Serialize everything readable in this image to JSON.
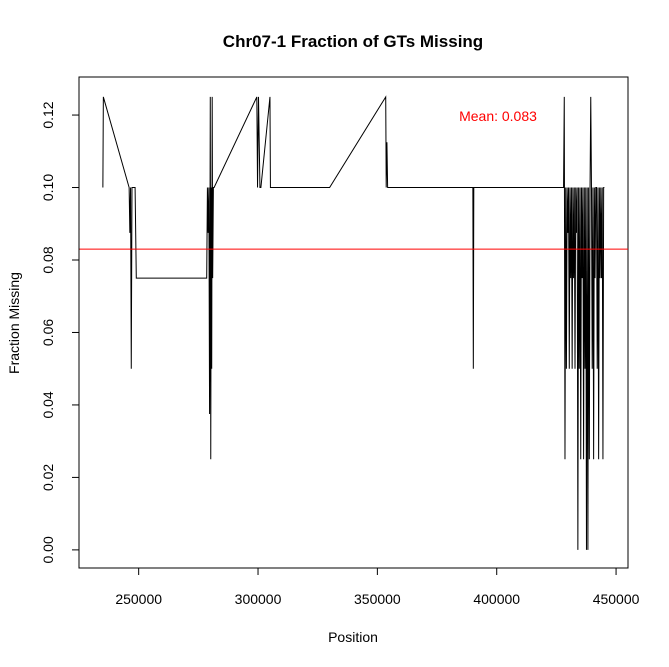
{
  "chart_data": {
    "type": "line",
    "title": "Chr07-1 Fraction of GTs Missing",
    "xlabel": "Position",
    "ylabel": "Fraction Missing",
    "xlim": [
      225000,
      455000
    ],
    "ylim": [
      -0.005,
      0.1305
    ],
    "x_ticks": [
      250000,
      300000,
      350000,
      400000,
      450000
    ],
    "x_tick_labels": [
      "250000",
      "300000",
      "350000",
      "400000",
      "450000"
    ],
    "y_ticks": [
      0.0,
      0.02,
      0.04,
      0.06,
      0.08,
      0.1,
      0.12
    ],
    "y_tick_labels": [
      "0.00",
      "0.02",
      "0.04",
      "0.06",
      "0.08",
      "0.10",
      "0.12"
    ],
    "grid": false,
    "line_color": "#000000",
    "mean": {
      "value": 0.083,
      "label": "Mean: 0.083",
      "color": "#ff0000"
    },
    "series": [
      {
        "x": [
          235000,
          235200,
          246000,
          246300,
          246600,
          246900,
          247200,
          248000,
          248500,
          249000,
          249500,
          278500,
          278800,
          279100,
          279400,
          279700,
          280000,
          280200,
          280400,
          280600,
          280800,
          281000,
          281300,
          281600,
          299500,
          299800,
          300200,
          300500,
          300800,
          301200,
          305000,
          305200,
          330000,
          353500,
          353700,
          354000,
          354300,
          355000,
          390000,
          390200,
          390400,
          428000,
          428300,
          428600,
          428900,
          429200,
          429500,
          429800,
          430100,
          430400,
          430700,
          431000,
          431300,
          431600,
          431900,
          432200,
          432500,
          432800,
          433100,
          433400,
          433700,
          434000,
          434300,
          434600,
          434900,
          435200,
          435500,
          435800,
          436100,
          436400,
          436700,
          437000,
          437300,
          437600,
          437900,
          438200,
          438500,
          438800,
          439100,
          439400,
          439700,
          440000,
          440300,
          440600,
          440900,
          441200,
          441500,
          441800,
          442100,
          442400,
          442700,
          443000,
          443300,
          443600,
          443900,
          444200,
          444500,
          444800,
          445100
        ],
        "values": [
          0.1,
          0.125,
          0.1,
          0.0875,
          0.1,
          0.05,
          0.1,
          0.1,
          0.1,
          0.075,
          0.075,
          0.075,
          0.1,
          0.0875,
          0.1,
          0.0375,
          0.125,
          0.025,
          0.1,
          0.05,
          0.125,
          0.075,
          0.1,
          0.1,
          0.125,
          0.1,
          0.125,
          0.1125,
          0.1,
          0.1,
          0.125,
          0.1,
          0.1,
          0.125,
          0.1,
          0.1125,
          0.1,
          0.1,
          0.1,
          0.05,
          0.1,
          0.1,
          0.125,
          0.025,
          0.1,
          0.05,
          0.1,
          0.0875,
          0.1,
          0.05,
          0.1,
          0.075,
          0.1,
          0.05,
          0.1,
          0.075,
          0.1,
          0.05,
          0.1,
          0.0875,
          0.1,
          0.0,
          0.1,
          0.05,
          0.1,
          0.025,
          0.1,
          0.075,
          0.1,
          0.025,
          0.1,
          0.05,
          0.1,
          0.0,
          0.1,
          0.0,
          0.1,
          0.025,
          0.1,
          0.125,
          0.1,
          0.05,
          0.1,
          0.025,
          0.1,
          0.075,
          0.1,
          0.1,
          0.05,
          0.1,
          0.025,
          0.1,
          0.075,
          0.1,
          0.075,
          0.1,
          0.025,
          0.1,
          0.1
        ]
      }
    ]
  }
}
